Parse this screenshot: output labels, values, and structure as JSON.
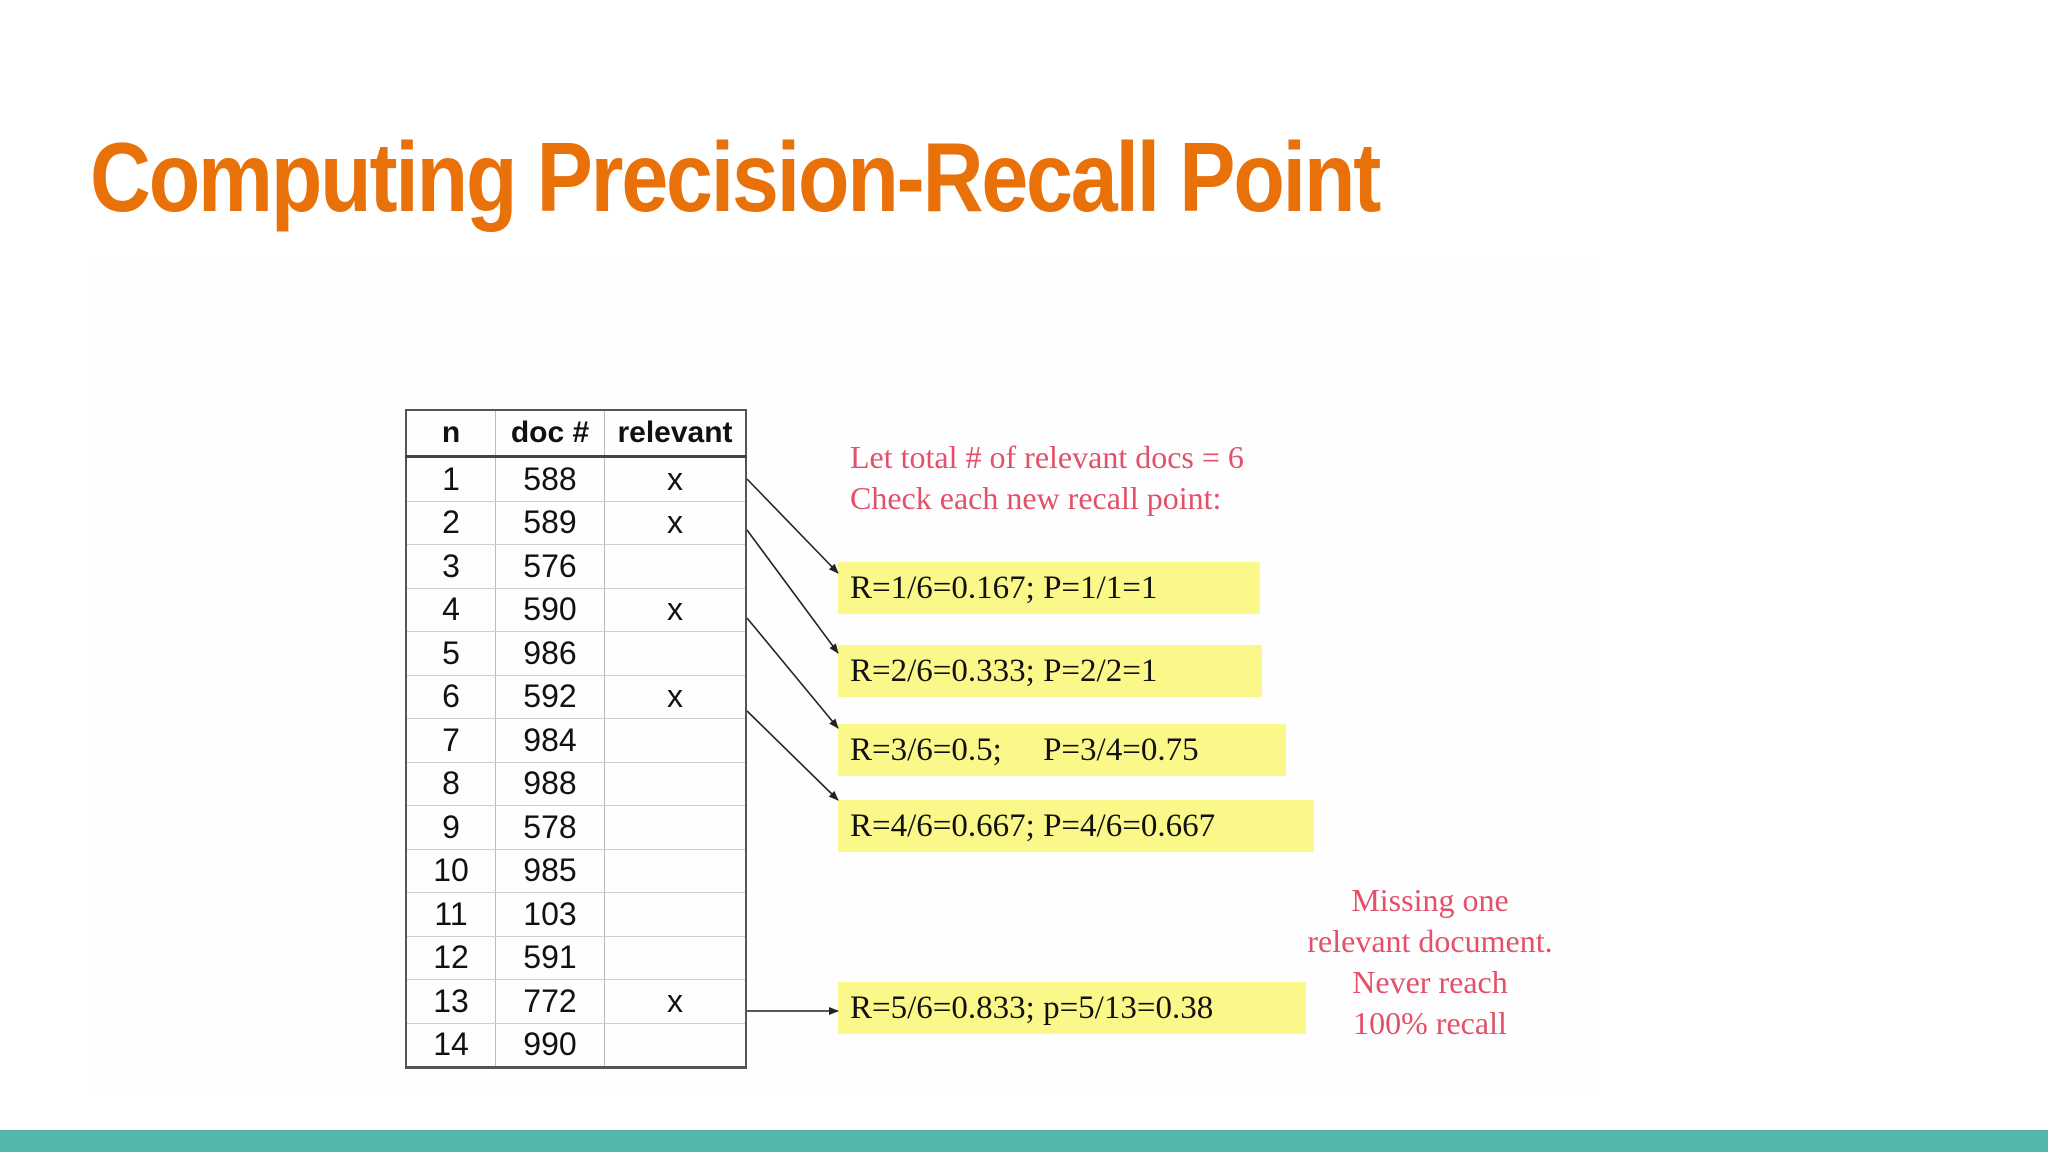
{
  "slide": {
    "title": "Computing Precision-Recall Point"
  },
  "table": {
    "headers": {
      "n": "n",
      "doc": "doc #",
      "relevant": "relevant"
    },
    "rows": [
      {
        "n": "1",
        "doc": "588",
        "relevant": "x"
      },
      {
        "n": "2",
        "doc": "589",
        "relevant": "x"
      },
      {
        "n": "3",
        "doc": "576",
        "relevant": ""
      },
      {
        "n": "4",
        "doc": "590",
        "relevant": "x"
      },
      {
        "n": "5",
        "doc": "986",
        "relevant": ""
      },
      {
        "n": "6",
        "doc": "592",
        "relevant": "x"
      },
      {
        "n": "7",
        "doc": "984",
        "relevant": ""
      },
      {
        "n": "8",
        "doc": "988",
        "relevant": ""
      },
      {
        "n": "9",
        "doc": "578",
        "relevant": ""
      },
      {
        "n": "10",
        "doc": "985",
        "relevant": ""
      },
      {
        "n": "11",
        "doc": "103",
        "relevant": ""
      },
      {
        "n": "12",
        "doc": "591",
        "relevant": ""
      },
      {
        "n": "13",
        "doc": "772",
        "relevant": "x"
      },
      {
        "n": "14",
        "doc": "990",
        "relevant": ""
      }
    ]
  },
  "notes": {
    "intro_line1": "Let total # of relevant docs = 6",
    "intro_line2": "Check each new recall point:",
    "missing_line1": "Missing one",
    "missing_line2": "relevant document.",
    "missing_line3": "Never reach",
    "missing_line4": "100% recall"
  },
  "calculations": [
    "R=1/6=0.167; P=1/1=1",
    "R=2/6=0.333; P=2/2=1",
    "R=3/6=0.5;     P=3/4=0.75",
    "R=4/6=0.667; P=4/6=0.667",
    "R=5/6=0.833; p=5/13=0.38"
  ],
  "colors": {
    "title": "#e8710a",
    "note_text": "#e2506a",
    "highlight": "#fbf88a",
    "bottom_bar": "#54b6a8"
  }
}
